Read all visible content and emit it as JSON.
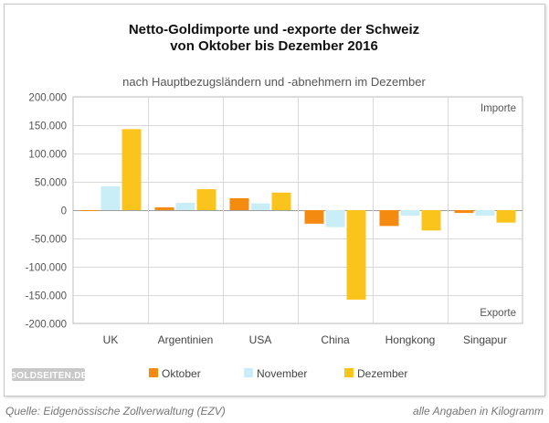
{
  "chart_data": {
    "type": "bar",
    "title_line1": "Netto-Goldimporte und -exporte der Schweiz",
    "title_line2": "von Oktober bis Dezember 2016",
    "subtitle": "nach Hauptbezugsländern und -abnehmern im Dezember",
    "categories": [
      "UK",
      "Argentinien",
      "USA",
      "China",
      "Hongkong",
      "Singapur"
    ],
    "series": [
      {
        "name": "Oktober",
        "color": "#f58a10",
        "values": [
          -1000,
          5000,
          21000,
          -24000,
          -28000,
          -5000
        ]
      },
      {
        "name": "November",
        "color": "#c9eef8",
        "values": [
          42000,
          13000,
          12000,
          -30000,
          -10000,
          -10000
        ]
      },
      {
        "name": "Dezember",
        "color": "#fbc41c",
        "values": [
          143000,
          37000,
          31000,
          -158000,
          -36000,
          -22000
        ]
      }
    ],
    "ylim": [
      -200000,
      200000
    ],
    "yticks": [
      200000,
      150000,
      100000,
      50000,
      0,
      -50000,
      -100000,
      -150000,
      -200000
    ],
    "ytick_labels": [
      "200.000",
      "150.000",
      "100.000",
      "50.000",
      "0",
      "-50.000",
      "-100.000",
      "-150.000",
      "-200.000"
    ],
    "annotation_top": "Importe",
    "annotation_bottom": "Exporte",
    "grid": true,
    "legend_position": "bottom"
  },
  "logo": {
    "text": "GOLDSEITEN.DE"
  },
  "footer": {
    "source": "Quelle: Eidgenössische Zollverwaltung (EZV)",
    "unit_note": "alle Angaben in Kilogramm"
  }
}
